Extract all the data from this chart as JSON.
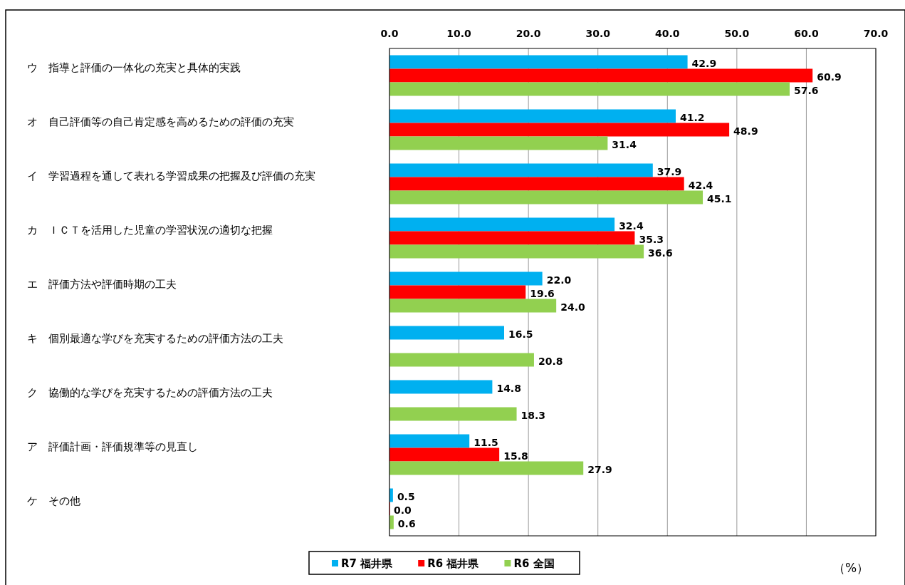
{
  "chart_data": {
    "type": "bar",
    "orientation": "horizontal",
    "categories": [
      "ウ　指導と評価の一体化の充実と具体的実践",
      "オ　自己評価等の自己肯定感を高めるための評価の充実",
      "イ　学習過程を通して表れる学習成果の把握及び評価の充実",
      "カ　ＩＣＴを活用した児童の学習状況の適切な把握",
      "エ　評価方法や評価時期の工夫",
      "キ　個別最適な学びを充実するための評価方法の工夫",
      "ク　協働的な学びを充実するための評価方法の工夫",
      "ア　評価計画・評価規準等の見直し",
      "ケ　その他"
    ],
    "series": [
      {
        "name": "R7 福井県",
        "color": "#00b0f0",
        "values": [
          42.9,
          41.2,
          37.9,
          32.4,
          22.0,
          16.5,
          14.8,
          11.5,
          0.5
        ],
        "value_labels": [
          "42.9",
          "41.2",
          "37.9",
          "32.4",
          "22.0",
          "16.5",
          "14.8",
          "11.5",
          "0.5"
        ]
      },
      {
        "name": "R6 福井県",
        "color": "#ff0000",
        "values": [
          60.9,
          48.9,
          42.4,
          35.3,
          19.6,
          null,
          null,
          15.8,
          0.0
        ],
        "value_labels": [
          "60.9",
          "48.9",
          "42.4",
          "35.3",
          "19.6",
          null,
          null,
          "15.8",
          "0.0"
        ]
      },
      {
        "name": "R6 全国",
        "color": "#92d050",
        "values": [
          57.6,
          31.4,
          45.1,
          36.6,
          24.0,
          20.8,
          18.3,
          27.9,
          0.6
        ],
        "value_labels": [
          "57.6",
          "31.4",
          "45.1",
          "36.6",
          "24.0",
          "20.8",
          "18.3",
          "27.9",
          "0.6"
        ]
      }
    ],
    "xlim": [
      0,
      70
    ],
    "xticks": [
      {
        "value": 0,
        "label": "0.0"
      },
      {
        "value": 10,
        "label": "10.0"
      },
      {
        "value": 20,
        "label": "20.0"
      },
      {
        "value": 30,
        "label": "30.0"
      },
      {
        "value": 40,
        "label": "40.0"
      },
      {
        "value": 50,
        "label": "50.0"
      },
      {
        "value": 60,
        "label": "60.0"
      },
      {
        "value": 70,
        "label": "70.0"
      }
    ],
    "grid": "x",
    "legend": "bottom",
    "annotations": [
      "（%）"
    ]
  }
}
